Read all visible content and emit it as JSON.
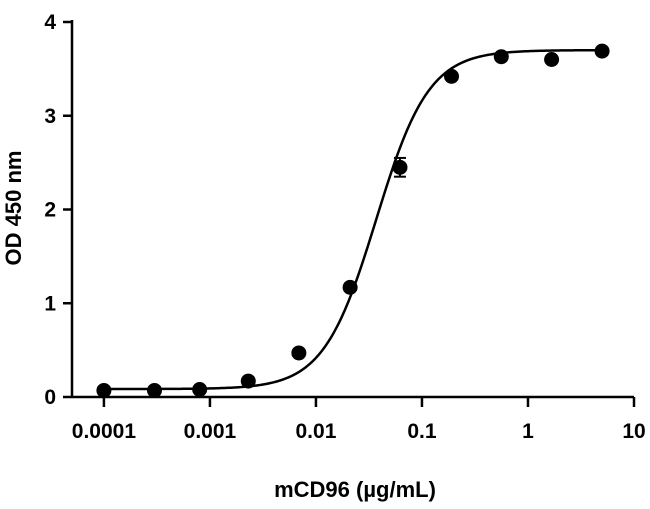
{
  "chart_data": {
    "type": "scatter",
    "title": "",
    "xlabel": "mCD96 (µg/mL)",
    "ylabel": "OD 450 nm",
    "x_scale": "log",
    "xlim": [
      5e-05,
      10
    ],
    "ylim": [
      0,
      4
    ],
    "x_ticks": [
      0.0001,
      0.001,
      0.01,
      0.1,
      1,
      10
    ],
    "x_tick_labels": [
      "0.0001",
      "0.001",
      "0.01",
      "0.1",
      "1",
      "10"
    ],
    "y_ticks": [
      0,
      1,
      2,
      3,
      4
    ],
    "y_tick_labels": [
      "0",
      "1",
      "2",
      "3",
      "4"
    ],
    "grid": false,
    "series": [
      {
        "x": [
          0.0001,
          0.0003,
          0.0008,
          0.0023,
          0.0069,
          0.021,
          0.062,
          0.19,
          0.56,
          1.67,
          5.0
        ],
        "y": [
          0.07,
          0.07,
          0.08,
          0.17,
          0.47,
          1.17,
          2.45,
          3.42,
          3.63,
          3.6,
          3.69
        ],
        "error": [
          0,
          0,
          0,
          0,
          0,
          0,
          0.1,
          0,
          0,
          0,
          0
        ],
        "color": "#000000",
        "marker": "filled-circle",
        "fit": {
          "model": "4PL",
          "bottom": 0.085,
          "top": 3.7,
          "ec50": 0.037,
          "hill": 1.75
        }
      }
    ]
  }
}
